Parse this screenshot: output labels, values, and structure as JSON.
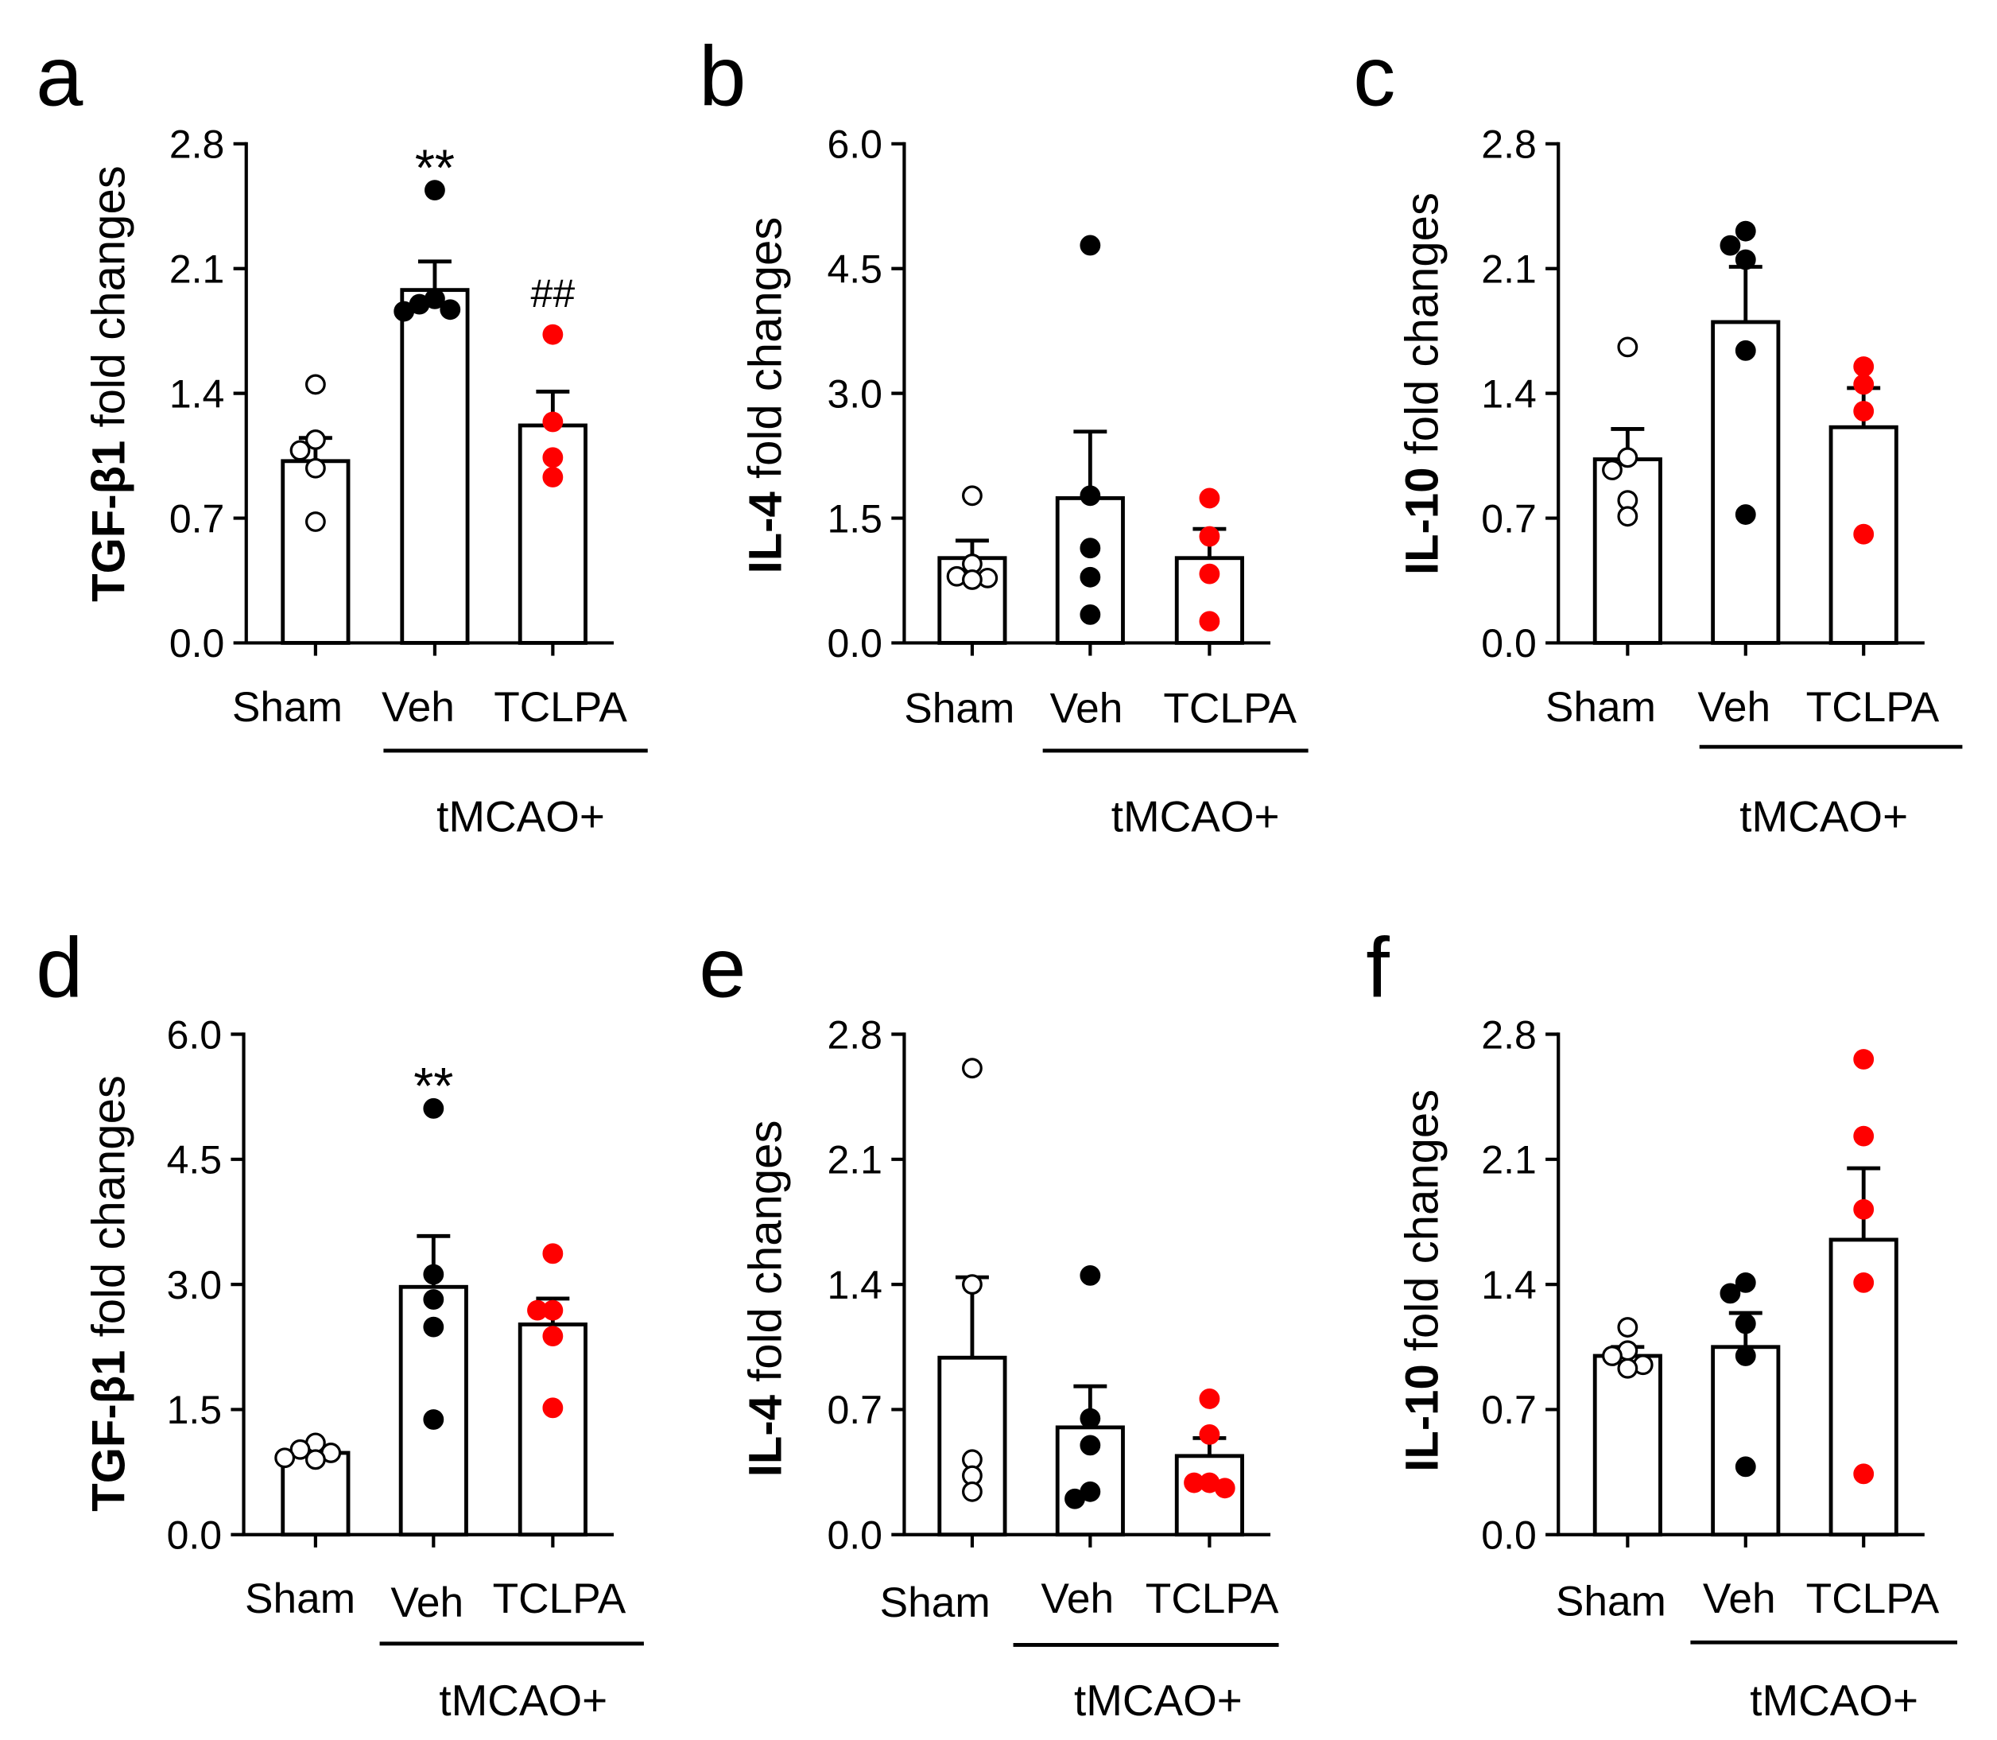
{
  "styles": {
    "point_fill": [
      "#ffffff",
      "#000000",
      "#ff0000"
    ],
    "point_stroke": [
      "#000000",
      "#000000",
      "#ff0000"
    ],
    "bar_fill": "#ffffff",
    "line_color": "#000000"
  },
  "chart_data": [
    {
      "panel": "a",
      "type": "bar",
      "ylabel_bold": "TGF-β1",
      "ylabel_rest": "fold changes",
      "ylim": [
        0,
        2.8
      ],
      "yticks": [
        0,
        0.7,
        1.4,
        2.1,
        2.8
      ],
      "ytick_labels": [
        "0.0",
        "0.7",
        "1.4",
        "2.1",
        "2.8"
      ],
      "categories": [
        "Sham",
        "Veh",
        "TCLPA"
      ],
      "values": [
        1.02,
        1.98,
        1.22
      ],
      "sem": [
        0.13,
        0.16,
        0.19
      ],
      "points": [
        [
          1.45,
          1.14,
          1.08,
          0.98,
          0.68
        ],
        [
          2.54,
          1.93,
          1.9,
          1.87,
          1.86
        ],
        [
          1.73,
          1.24,
          1.04,
          0.93
        ]
      ],
      "group": {
        "label": "tMCAO+",
        "from_index": 1,
        "to_index": 2
      },
      "annotations": [
        {
          "index": 1,
          "text": "**"
        },
        {
          "index": 2,
          "text": "##"
        }
      ]
    },
    {
      "panel": "b",
      "type": "bar",
      "ylabel_bold": "IL-4",
      "ylabel_rest": "fold changes",
      "ylim": [
        0,
        6.0
      ],
      "yticks": [
        0,
        1.5,
        3.0,
        4.5,
        6.0
      ],
      "ytick_labels": [
        "0.0",
        "1.5",
        "3.0",
        "4.5",
        "6.0"
      ],
      "categories": [
        "Sham",
        "Veh",
        "TCLPA"
      ],
      "values": [
        1.02,
        1.74,
        1.02
      ],
      "sem": [
        0.21,
        0.8,
        0.35
      ],
      "points": [
        [
          1.77,
          0.95,
          0.8,
          0.78,
          0.76
        ],
        [
          4.78,
          1.77,
          1.14,
          0.79,
          0.34
        ],
        [
          1.74,
          1.28,
          0.83,
          0.26
        ]
      ],
      "group": {
        "label": "tMCAO+",
        "from_index": 1,
        "to_index": 2
      },
      "annotations": []
    },
    {
      "panel": "c",
      "type": "bar",
      "ylabel_bold": "IL-10",
      "ylabel_rest": "fold changes",
      "ylim": [
        0,
        2.8
      ],
      "yticks": [
        0,
        0.7,
        1.4,
        2.1,
        2.8
      ],
      "ytick_labels": [
        "0.0",
        "0.7",
        "1.4",
        "2.1",
        "2.8"
      ],
      "categories": [
        "Sham",
        "Veh",
        "TCLPA"
      ],
      "values": [
        1.03,
        1.8,
        1.21
      ],
      "sem": [
        0.17,
        0.31,
        0.22
      ],
      "points": [
        [
          1.66,
          1.04,
          0.97,
          0.8,
          0.71
        ],
        [
          2.31,
          2.23,
          2.15,
          1.64,
          0.72
        ],
        [
          1.55,
          1.45,
          1.3,
          0.61
        ]
      ],
      "group": {
        "label": "tMCAO+",
        "from_index": 1,
        "to_index": 2
      },
      "annotations": []
    },
    {
      "panel": "d",
      "type": "bar",
      "ylabel_bold": "TGF-β1",
      "ylabel_rest": "fold changes",
      "ylim": [
        0,
        6.0
      ],
      "yticks": [
        0,
        1.5,
        3.0,
        4.5,
        6.0
      ],
      "ytick_labels": [
        "0.0",
        "1.5",
        "3.0",
        "4.5",
        "6.0"
      ],
      "categories": [
        "Sham",
        "Veh",
        "TCLPA"
      ],
      "values": [
        0.98,
        2.97,
        2.52
      ],
      "sem": [
        0.05,
        0.61,
        0.31
      ],
      "points": [
        [
          1.1,
          1.02,
          0.98,
          0.92,
          0.9
        ],
        [
          5.11,
          3.12,
          2.82,
          2.49,
          1.38
        ],
        [
          3.37,
          2.69,
          2.69,
          2.38,
          1.52
        ]
      ],
      "group": {
        "label": "tMCAO+",
        "from_index": 1,
        "to_index": 2
      },
      "annotations": [
        {
          "index": 1,
          "text": "**"
        }
      ]
    },
    {
      "panel": "e",
      "type": "bar",
      "ylabel_bold": "IL-4",
      "ylabel_rest": "fold changes",
      "ylim": [
        0,
        2.8
      ],
      "yticks": [
        0,
        0.7,
        1.4,
        2.1,
        2.8
      ],
      "ytick_labels": [
        "0.0",
        "0.7",
        "1.4",
        "2.1",
        "2.8"
      ],
      "categories": [
        "Sham",
        "Veh",
        "TCLPA"
      ],
      "values": [
        0.99,
        0.6,
        0.44
      ],
      "sem": [
        0.45,
        0.23,
        0.1
      ],
      "points": [
        [
          2.61,
          1.4,
          0.42,
          0.33,
          0.24
        ],
        [
          1.45,
          0.65,
          0.5,
          0.24,
          0.2
        ],
        [
          0.76,
          0.56,
          0.29,
          0.29,
          0.26
        ]
      ],
      "group": {
        "label": "tMCAO+",
        "from_index": 1,
        "to_index": 2
      },
      "annotations": []
    },
    {
      "panel": "f",
      "type": "bar",
      "ylabel_bold": "IL-10",
      "ylabel_rest": "fold changes",
      "ylim": [
        0,
        2.8
      ],
      "yticks": [
        0,
        0.7,
        1.4,
        2.1,
        2.8
      ],
      "ytick_labels": [
        "0.0",
        "0.7",
        "1.4",
        "2.1",
        "2.8"
      ],
      "categories": [
        "Sham",
        "Veh",
        "TCLPA"
      ],
      "values": [
        1.0,
        1.05,
        1.65
      ],
      "sem": [
        0.05,
        0.19,
        0.4
      ],
      "points": [
        [
          1.16,
          1.03,
          1.0,
          0.95,
          0.93
        ],
        [
          1.41,
          1.35,
          1.18,
          1.0,
          0.38
        ],
        [
          2.66,
          2.23,
          1.82,
          1.41,
          0.34
        ]
      ],
      "group": {
        "label": "tMCAO+",
        "from_index": 1,
        "to_index": 2
      },
      "annotations": []
    }
  ]
}
